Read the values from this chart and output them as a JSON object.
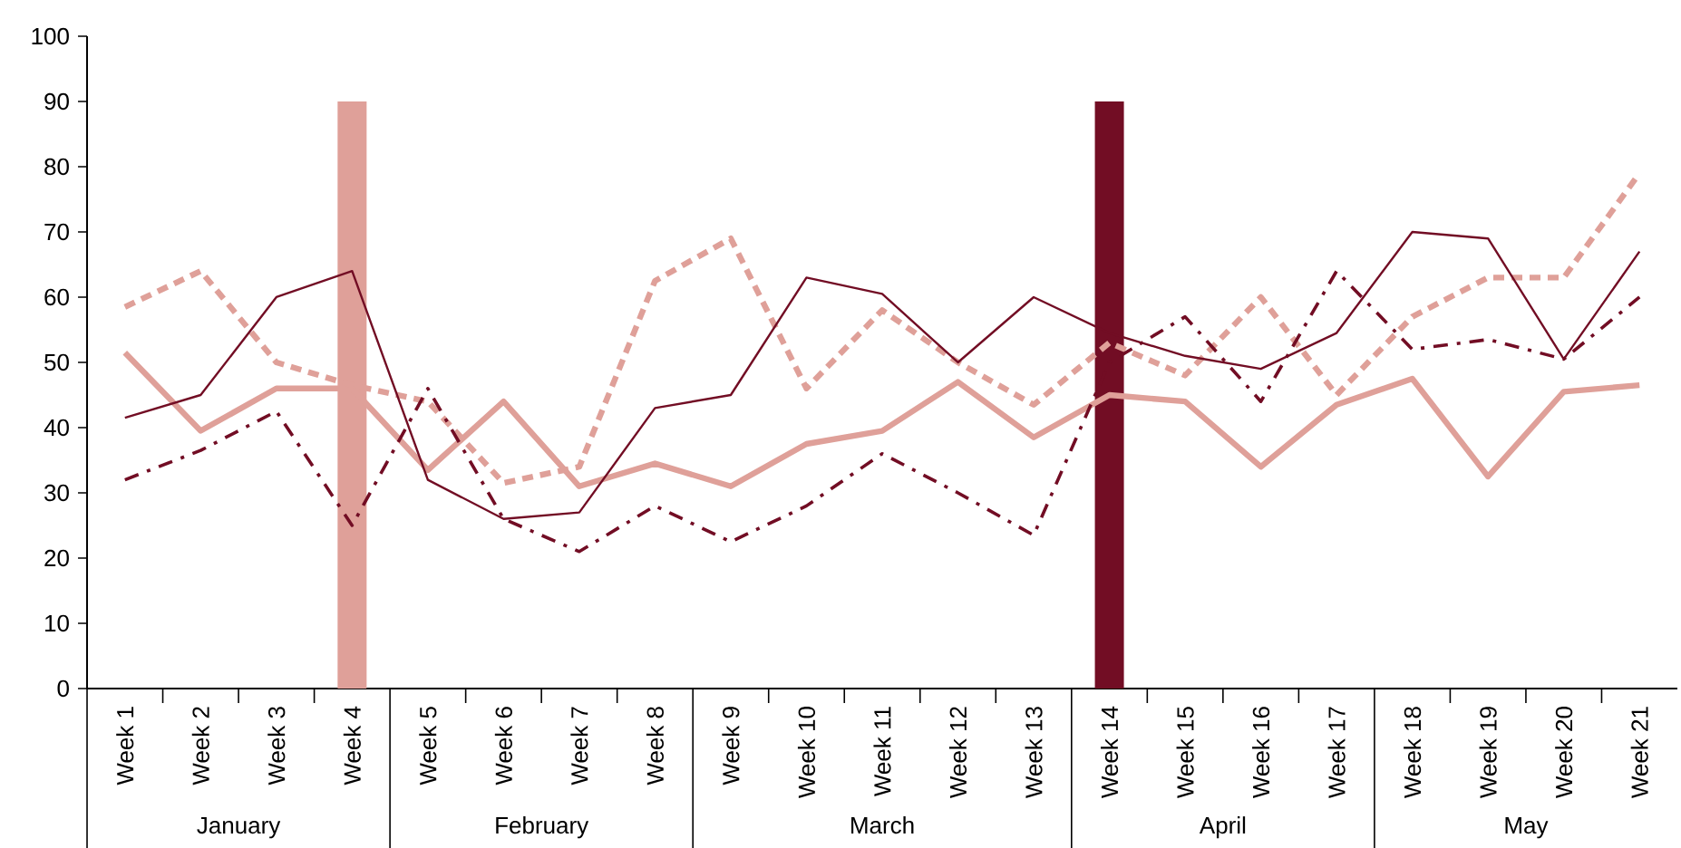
{
  "chart_data": {
    "type": "line",
    "categories": [
      "Week 1",
      "Week 2",
      "Week 3",
      "Week 4",
      "Week 5",
      "Week 6",
      "Week 7",
      "Week 8",
      "Week 9",
      "Week 10",
      "Week 11",
      "Week 12",
      "Week 13",
      "Week 14",
      "Week 15",
      "Week 16",
      "Week 17",
      "Week 18",
      "Week 19",
      "Week 20",
      "Week 21"
    ],
    "series": [
      {
        "type": "bar",
        "color": "#dfa099",
        "values": [
          null,
          null,
          null,
          90,
          null,
          null,
          null,
          null,
          null,
          null,
          null,
          null,
          null,
          null,
          null,
          null,
          null,
          null,
          null,
          null,
          null
        ]
      },
      {
        "type": "bar",
        "color": "#720d24",
        "values": [
          null,
          null,
          null,
          null,
          null,
          null,
          null,
          null,
          null,
          null,
          null,
          null,
          null,
          90,
          null,
          null,
          null,
          null,
          null,
          null,
          null
        ]
      },
      {
        "color": "#dfa099",
        "line_style": "solid",
        "values": [
          51.5,
          39.5,
          46,
          46,
          33.5,
          44,
          31,
          34.5,
          31,
          37.5,
          39.5,
          47,
          38.5,
          45,
          44,
          34,
          43.5,
          47.5,
          32.5,
          45.5,
          46.5
        ]
      },
      {
        "color": "#dfa099",
        "line_style": "dotted",
        "values": [
          58.5,
          64,
          50,
          46.5,
          44,
          31.5,
          34,
          62.5,
          69,
          46,
          58,
          50,
          43.5,
          53,
          48,
          60,
          45,
          57,
          63,
          63,
          79
        ]
      },
      {
        "color": "#720d24",
        "line_style": "solid",
        "values": [
          41.5,
          45,
          60,
          64,
          32,
          26,
          27,
          43,
          45,
          63,
          60.5,
          50,
          60,
          54.5,
          51,
          49,
          54.5,
          70,
          69,
          50.5,
          67
        ]
      },
      {
        "color": "#720d24",
        "line_style": "dashed",
        "values": [
          32,
          36.5,
          42.5,
          25,
          46,
          26,
          21,
          28,
          22.5,
          28,
          36,
          30,
          23.5,
          50,
          57,
          44,
          64,
          52,
          53.5,
          50.5,
          60
        ]
      }
    ],
    "annotations": [
      "January",
      "February",
      "March",
      "April",
      "May"
    ],
    "ylim": [
      0,
      100
    ],
    "yticks": [
      0,
      10,
      20,
      30,
      40,
      50,
      60,
      70,
      80,
      90,
      100
    ],
    "marker": "none"
  }
}
